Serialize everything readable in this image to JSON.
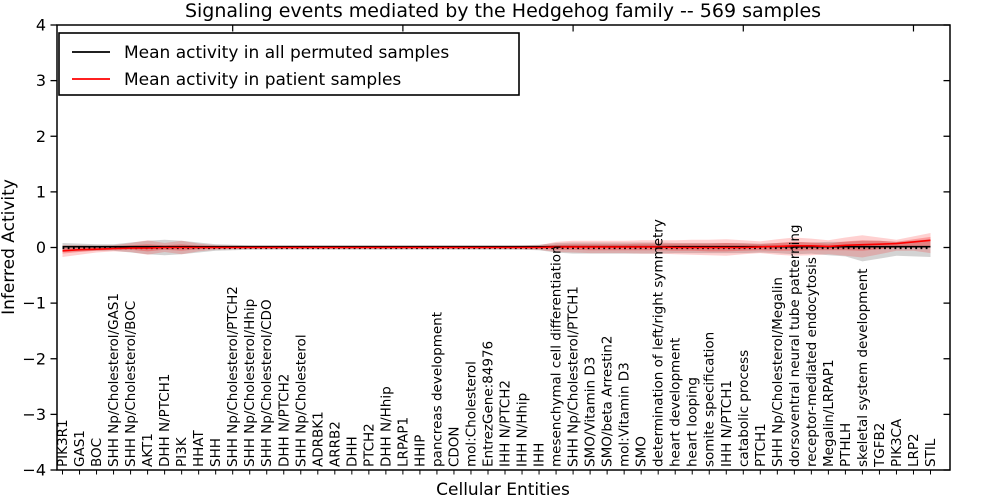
{
  "chart_data": {
    "type": "line",
    "title": "Signaling events mediated by the Hedgehog family -- 569 samples",
    "xlabel": "Cellular Entities",
    "ylabel": "Inferred Activity",
    "ylim": [
      -4,
      4
    ],
    "yticks": [
      -4,
      -3,
      -2,
      -1,
      0,
      1,
      2,
      3,
      4
    ],
    "grid": false,
    "legend_position": "upper left",
    "legend": {
      "items": [
        {
          "label": "Mean activity in all permuted samples",
          "color": "#000000"
        },
        {
          "label": "Mean activity in patient samples",
          "color": "#ff0000"
        }
      ]
    },
    "categories": [
      "PIK3R1",
      "GAS1",
      "BOC",
      "SHH Np/Cholesterol/GAS1",
      "SHH Np/Cholesterol/BOC",
      "AKT1",
      "DHH N/PTCH1",
      "PI3K",
      "HHAT",
      "SHH",
      "SHH Np/Cholesterol/PTCH2",
      "SHH Np/Cholesterol/Hhip",
      "SHH Np/Cholesterol/CDO",
      "DHH N/PTCH2",
      "SHH Np/Cholesterol",
      "ADRBK1",
      "ARRB2",
      "DHH",
      "PTCH2",
      "DHH N/Hhip",
      "LRPAP1",
      "HHIP",
      "pancreas development",
      "CDON",
      "mol:Cholesterol",
      "EntrezGene:84976",
      "IHH N/PTCH2",
      "IHH N/Hhip",
      "IHH",
      "mesenchymal cell differentiation",
      "SHH Np/Cholesterol/PTCH1",
      "SMO/Vitamin D3",
      "SMO/beta Arrestin2",
      "mol:Vitamin D3",
      "SMO",
      "determination of left/right symmetry",
      "heart development",
      "heart looping",
      "somite specification",
      "IHH N/PTCH1",
      "catabolic process",
      "PTCH1",
      "SHH Np/Cholesterol/Megalin",
      "dorsoventral neural tube patterning",
      "receptor-mediated endocytosis",
      "Megalin/LRPAP1",
      "PTHLH",
      "skeletal system development",
      "TGFB2",
      "PIK3CA",
      "LRP2",
      "STIL"
    ],
    "series": [
      {
        "name": "permuted-mean-line",
        "label": "Mean activity in all permuted samples",
        "color": "#000000",
        "style": "solid",
        "constant": 0.015
      },
      {
        "name": "permuted-median-line",
        "label": "",
        "color": "#000000",
        "style": "dotted",
        "constant": -0.015
      },
      {
        "name": "patient-mean-line",
        "label": "Mean activity in patient samples",
        "color": "#ff0000",
        "style": "solid",
        "values": [
          -0.06,
          -0.04,
          -0.03,
          -0.02,
          -0.01,
          -0.01,
          0,
          0,
          0,
          0,
          0,
          0,
          0,
          0,
          0,
          0,
          0,
          0,
          0,
          0,
          0,
          0,
          0,
          0,
          0,
          0,
          0,
          0,
          0,
          0.01,
          0.01,
          0.01,
          0.01,
          0.01,
          0.01,
          0.01,
          0,
          0,
          0,
          0,
          0,
          0.01,
          0.02,
          0.03,
          0.03,
          0.02,
          0.04,
          0.05,
          0.06,
          0.07,
          0.1,
          0.13
        ]
      }
    ],
    "bands": [
      {
        "name": "permuted-std-band",
        "color": "rgba(130,130,130,0.35)",
        "upper": [
          0.08,
          0.07,
          0.06,
          0.06,
          0.09,
          0.12,
          0.14,
          0.12,
          0.09,
          0.06,
          0.05,
          0.04,
          0.04,
          0.04,
          0.04,
          0.04,
          0.04,
          0.04,
          0.04,
          0.04,
          0.04,
          0.04,
          0.04,
          0.04,
          0.04,
          0.04,
          0.04,
          0.04,
          0.05,
          0.08,
          0.09,
          0.09,
          0.09,
          0.09,
          0.09,
          0.09,
          0.08,
          0.08,
          0.08,
          0.08,
          0.08,
          0.07,
          0.08,
          0.1,
          0.09,
          0.1,
          0.1,
          0.12,
          0.12,
          0.1,
          0.12,
          0.15
        ],
        "lower": [
          -0.08,
          -0.07,
          -0.06,
          -0.06,
          -0.09,
          -0.12,
          -0.14,
          -0.12,
          -0.09,
          -0.06,
          -0.05,
          -0.04,
          -0.04,
          -0.04,
          -0.04,
          -0.04,
          -0.04,
          -0.04,
          -0.04,
          -0.04,
          -0.04,
          -0.04,
          -0.04,
          -0.04,
          -0.04,
          -0.04,
          -0.04,
          -0.04,
          -0.05,
          -0.09,
          -0.11,
          -0.11,
          -0.11,
          -0.11,
          -0.11,
          -0.11,
          -0.1,
          -0.1,
          -0.1,
          -0.1,
          -0.1,
          -0.09,
          -0.1,
          -0.12,
          -0.11,
          -0.14,
          -0.16,
          -0.25,
          -0.2,
          -0.15,
          -0.16,
          -0.17
        ]
      },
      {
        "name": "patient-std-band",
        "color": "rgba(255,0,0,0.18)",
        "upper": [
          0.04,
          0.04,
          0.03,
          0.04,
          0.08,
          0.13,
          0.08,
          0.12,
          0.07,
          0.04,
          0.03,
          0.025,
          0.025,
          0.025,
          0.025,
          0.025,
          0.025,
          0.025,
          0.025,
          0.025,
          0.025,
          0.025,
          0.025,
          0.025,
          0.025,
          0.025,
          0.025,
          0.03,
          0.04,
          0.1,
          0.12,
          0.12,
          0.12,
          0.12,
          0.13,
          0.13,
          0.13,
          0.14,
          0.14,
          0.15,
          0.13,
          0.11,
          0.15,
          0.18,
          0.16,
          0.13,
          0.18,
          0.22,
          0.18,
          0.14,
          0.2,
          0.26
        ],
        "lower": [
          -0.17,
          -0.13,
          -0.09,
          -0.07,
          -0.08,
          -0.13,
          -0.08,
          -0.12,
          -0.07,
          -0.04,
          -0.03,
          -0.025,
          -0.025,
          -0.025,
          -0.025,
          -0.025,
          -0.025,
          -0.025,
          -0.025,
          -0.025,
          -0.025,
          -0.025,
          -0.025,
          -0.025,
          -0.025,
          -0.025,
          -0.025,
          -0.03,
          -0.04,
          -0.08,
          -0.09,
          -0.1,
          -0.1,
          -0.1,
          -0.11,
          -0.11,
          -0.12,
          -0.13,
          -0.14,
          -0.15,
          -0.12,
          -0.1,
          -0.13,
          -0.15,
          -0.14,
          -0.12,
          -0.15,
          -0.18,
          -0.12,
          -0.06,
          -0.06,
          -0.1
        ]
      },
      {
        "name": "patient-stderr-band",
        "color": "rgba(255,0,0,0.25)",
        "upper": [
          -0.01,
          0.0,
          0.0,
          0.01,
          0.04,
          0.06,
          0.04,
          0.06,
          0.03,
          0.02,
          0.015,
          0.012,
          0.012,
          0.012,
          0.012,
          0.012,
          0.012,
          0.012,
          0.012,
          0.012,
          0.012,
          0.012,
          0.012,
          0.012,
          0.012,
          0.012,
          0.012,
          0.015,
          0.02,
          0.05,
          0.06,
          0.06,
          0.06,
          0.06,
          0.07,
          0.07,
          0.07,
          0.07,
          0.07,
          0.08,
          0.07,
          0.06,
          0.08,
          0.1,
          0.09,
          0.07,
          0.11,
          0.13,
          0.12,
          0.1,
          0.15,
          0.19
        ],
        "lower": [
          -0.11,
          -0.08,
          -0.06,
          -0.04,
          -0.04,
          -0.07,
          -0.04,
          -0.06,
          -0.03,
          -0.02,
          -0.015,
          -0.012,
          -0.012,
          -0.012,
          -0.012,
          -0.012,
          -0.012,
          -0.012,
          -0.012,
          -0.012,
          -0.012,
          -0.012,
          -0.012,
          -0.012,
          -0.012,
          -0.012,
          -0.012,
          -0.015,
          -0.02,
          -0.04,
          -0.04,
          -0.05,
          -0.05,
          -0.05,
          -0.05,
          -0.05,
          -0.06,
          -0.06,
          -0.07,
          -0.07,
          -0.06,
          -0.05,
          -0.06,
          -0.06,
          -0.05,
          -0.05,
          -0.05,
          -0.06,
          -0.03,
          0.0,
          0.02,
          0.02
        ]
      }
    ]
  }
}
